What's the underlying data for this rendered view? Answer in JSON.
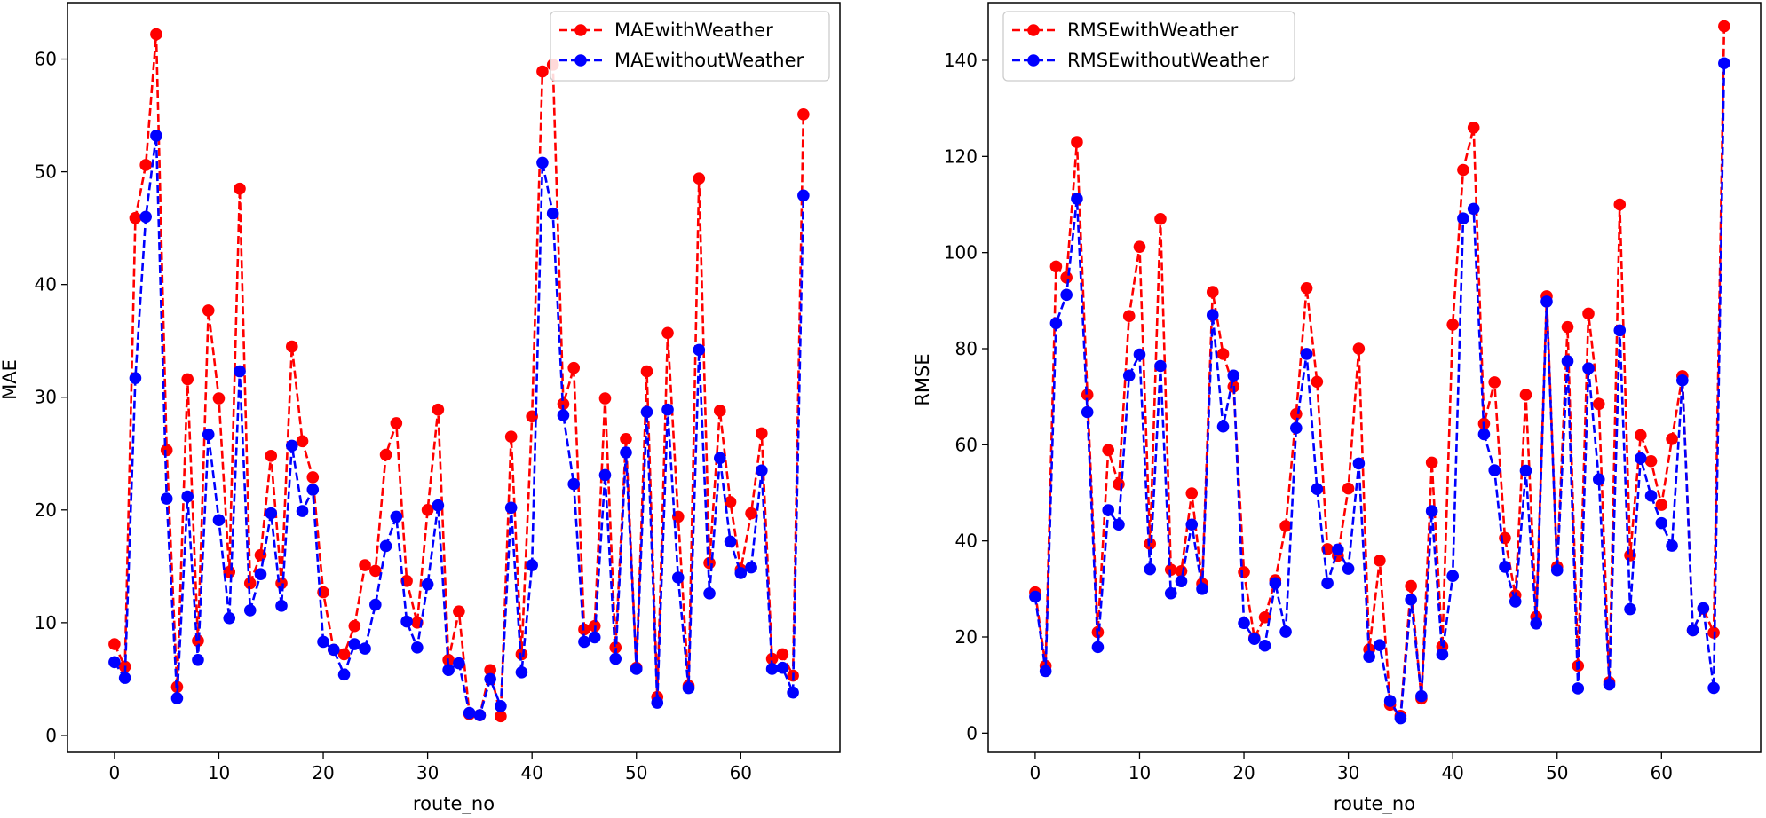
{
  "chart_data": [
    {
      "type": "line",
      "title": "",
      "xlabel": "route_no",
      "ylabel": "MAE",
      "xlim": [
        -4.5,
        69.5
      ],
      "ylim": [
        -1.5,
        65.0
      ],
      "xticks": [
        0,
        10,
        20,
        30,
        40,
        50,
        60
      ],
      "yticks": [
        0,
        10,
        20,
        30,
        40,
        50,
        60
      ],
      "legend_position": "top-right",
      "x": [
        0,
        1,
        2,
        3,
        4,
        5,
        6,
        7,
        8,
        9,
        10,
        11,
        12,
        13,
        14,
        15,
        16,
        17,
        18,
        19,
        20,
        21,
        22,
        23,
        24,
        25,
        26,
        27,
        28,
        29,
        30,
        31,
        32,
        33,
        34,
        35,
        36,
        37,
        38,
        39,
        40,
        41,
        42,
        43,
        44,
        45,
        46,
        47,
        48,
        49,
        50,
        51,
        52,
        53,
        54,
        55,
        56,
        57,
        58,
        59,
        60,
        61,
        62,
        63,
        64,
        65,
        66
      ],
      "series": [
        {
          "name": "MAEwithWeather",
          "color": "#ff0000",
          "values": [
            8.1,
            6.1,
            45.9,
            50.6,
            62.2,
            25.3,
            4.3,
            31.6,
            8.4,
            37.7,
            29.9,
            14.5,
            48.5,
            13.5,
            16.0,
            24.8,
            13.5,
            34.5,
            26.1,
            22.9,
            12.7,
            7.6,
            7.2,
            9.7,
            15.1,
            14.6,
            24.9,
            27.7,
            13.7,
            10.0,
            20.0,
            28.9,
            6.7,
            11.0,
            1.9,
            1.8,
            5.8,
            1.7,
            26.5,
            7.2,
            28.3,
            58.9,
            59.5,
            29.4,
            32.6,
            9.4,
            9.7,
            29.9,
            7.8,
            26.3,
            6.0,
            32.3,
            3.4,
            35.7,
            19.4,
            4.4,
            49.4,
            15.3,
            28.8,
            20.7,
            14.7,
            19.7,
            26.8,
            6.8,
            7.2,
            5.3,
            55.1
          ]
        },
        {
          "name": "MAEwithoutWeather",
          "color": "#0000ff",
          "values": [
            6.5,
            5.1,
            31.7,
            46.0,
            53.2,
            21.0,
            3.3,
            21.2,
            6.7,
            26.7,
            19.1,
            10.4,
            32.3,
            11.1,
            14.3,
            19.7,
            11.5,
            25.7,
            19.9,
            21.8,
            8.3,
            7.6,
            5.4,
            8.1,
            7.7,
            11.6,
            16.8,
            19.4,
            10.1,
            7.8,
            13.4,
            20.4,
            5.8,
            6.4,
            2.0,
            1.8,
            5.0,
            2.6,
            20.2,
            5.6,
            15.1,
            50.8,
            46.3,
            28.4,
            22.3,
            8.3,
            8.7,
            23.1,
            6.8,
            25.1,
            5.9,
            28.7,
            2.9,
            28.9,
            14.0,
            4.2,
            34.2,
            12.6,
            24.6,
            17.2,
            14.4,
            14.9,
            23.5,
            5.9,
            6.0,
            3.8,
            47.9
          ]
        }
      ]
    },
    {
      "type": "line",
      "title": "",
      "xlabel": "route_no",
      "ylabel": "RMSE",
      "xlim": [
        -4.5,
        69.5
      ],
      "ylim": [
        -4.0,
        152.0
      ],
      "xticks": [
        0,
        10,
        20,
        30,
        40,
        50,
        60
      ],
      "yticks": [
        0,
        20,
        40,
        60,
        80,
        100,
        120,
        140
      ],
      "legend_position": "top-left",
      "x": [
        0,
        1,
        2,
        3,
        4,
        5,
        6,
        7,
        8,
        9,
        10,
        11,
        12,
        13,
        14,
        15,
        16,
        17,
        18,
        19,
        20,
        21,
        22,
        23,
        24,
        25,
        26,
        27,
        28,
        29,
        30,
        31,
        32,
        33,
        34,
        35,
        36,
        37,
        38,
        39,
        40,
        41,
        42,
        43,
        44,
        45,
        46,
        47,
        48,
        49,
        50,
        51,
        52,
        53,
        54,
        55,
        56,
        57,
        58,
        59,
        60,
        61,
        62,
        63,
        64,
        65,
        66
      ],
      "series": [
        {
          "name": "RMSEwithWeather",
          "color": "#ff0000",
          "values": [
            29.3,
            14.0,
            97.1,
            94.8,
            123.0,
            70.4,
            21.0,
            58.9,
            51.8,
            86.8,
            101.2,
            39.4,
            107.0,
            34.0,
            33.7,
            49.9,
            31.1,
            91.8,
            78.9,
            72.1,
            33.5,
            19.8,
            24.1,
            31.8,
            43.1,
            66.4,
            92.6,
            73.1,
            38.3,
            36.9,
            50.9,
            80.0,
            17.4,
            35.9,
            5.9,
            3.6,
            30.6,
            7.2,
            56.3,
            18.0,
            85.0,
            117.2,
            126.0,
            64.4,
            73.0,
            40.6,
            28.7,
            70.4,
            24.2,
            90.9,
            34.6,
            84.5,
            14.0,
            87.3,
            68.5,
            10.6,
            110.0,
            37.0,
            62.0,
            56.6,
            47.5,
            61.2,
            74.3,
            21.4,
            25.9,
            20.9,
            147.1
          ]
        },
        {
          "name": "RMSEwithoutWeather",
          "color": "#0000ff",
          "values": [
            28.4,
            12.9,
            85.3,
            91.2,
            111.2,
            66.8,
            17.9,
            46.4,
            43.4,
            74.4,
            78.8,
            34.1,
            76.4,
            29.1,
            31.6,
            43.4,
            30.0,
            87.0,
            63.8,
            74.4,
            22.9,
            19.6,
            18.2,
            31.2,
            21.1,
            63.5,
            78.9,
            50.8,
            31.2,
            38.2,
            34.2,
            56.1,
            15.9,
            18.3,
            6.7,
            3.1,
            27.8,
            7.7,
            46.2,
            16.4,
            32.7,
            107.1,
            109.1,
            62.2,
            54.7,
            34.6,
            27.4,
            54.6,
            22.8,
            89.8,
            33.9,
            77.4,
            9.3,
            75.9,
            52.8,
            10.1,
            83.8,
            25.8,
            57.2,
            49.4,
            43.7,
            39.0,
            73.4,
            21.4,
            26.0,
            9.4,
            139.4
          ]
        }
      ]
    }
  ]
}
